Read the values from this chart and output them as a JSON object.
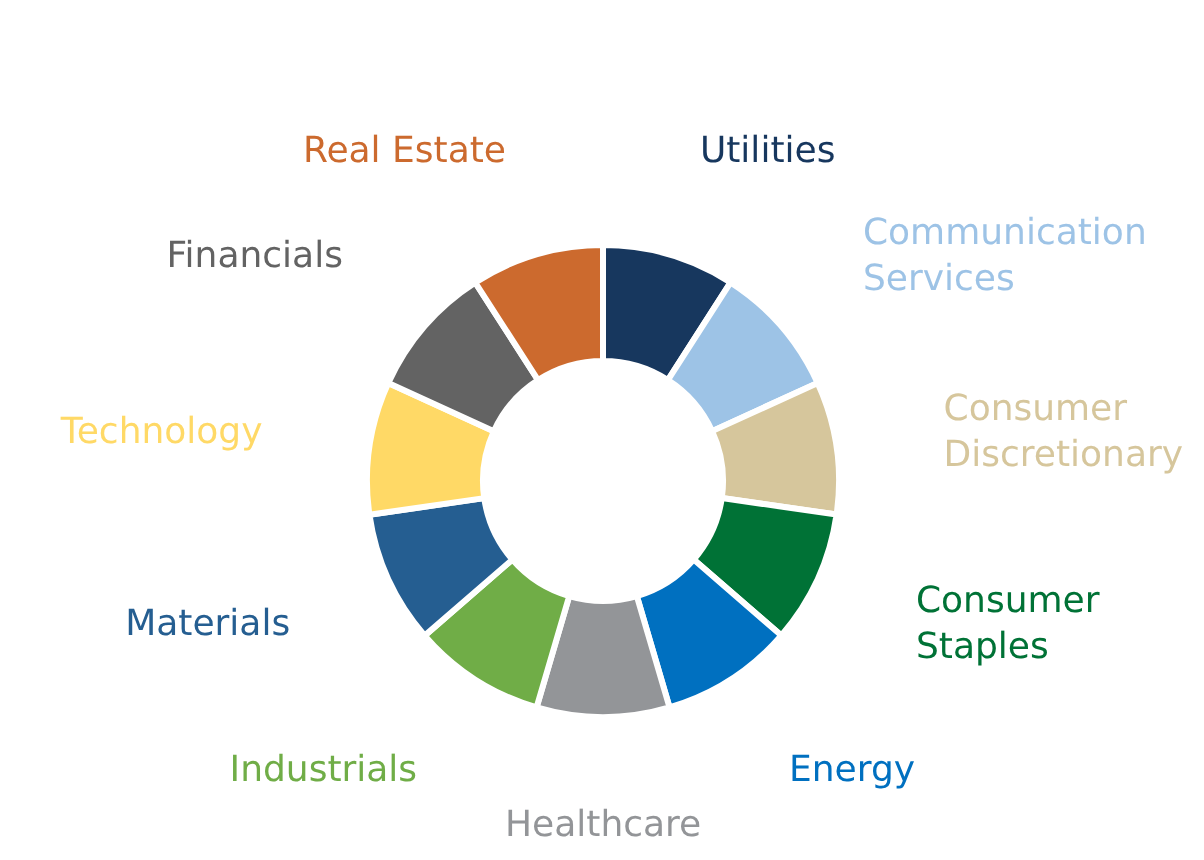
{
  "chart_data": {
    "type": "donut",
    "categories": [
      "Utilities",
      "Communication Services",
      "Consumer Discretionary",
      "Consumer Staples",
      "Energy",
      "Healthcare",
      "Industrials",
      "Materials",
      "Technology",
      "Financials",
      "Real Estate"
    ],
    "values": [
      9.09,
      9.09,
      9.09,
      9.09,
      9.09,
      9.09,
      9.09,
      9.09,
      9.09,
      9.09,
      9.1
    ],
    "colors": [
      "#17375e",
      "#9dc3e6",
      "#d6c69c",
      "#007236",
      "#0070c0",
      "#939598",
      "#70ad47",
      "#255e91",
      "#ffd966",
      "#636363",
      "#cc6a2e"
    ]
  }
}
